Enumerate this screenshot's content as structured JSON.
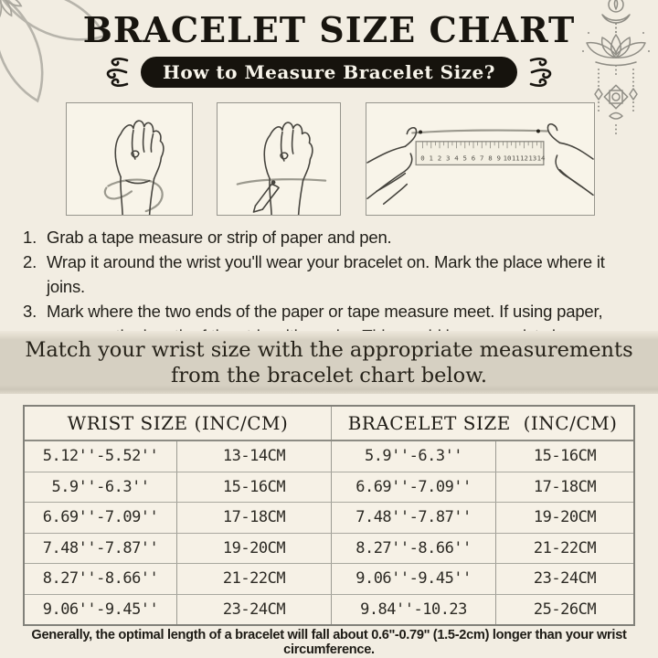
{
  "page_title": "BRACELET SIZE CHART",
  "badge_label": "How to Measure Bracelet Size?",
  "steps": [
    {
      "num": "1.",
      "text": "Grab a tape measure or strip of paper and pen."
    },
    {
      "num": "2.",
      "text": "Wrap it around the wrist you'll wear your bracelet on. Mark the place where it joins."
    },
    {
      "num": "3.",
      "text": "Mark where the two ends of the paper or tape measure meet. If using paper, measure the length of the strip with a ruler. This would be your wrist size."
    }
  ],
  "banner": {
    "line1": "Match your wrist size with the appropriate measurements",
    "line2": "from the bracelet chart below."
  },
  "illustrations": {
    "box1": "fist with tape measure wrapped around wrist",
    "box2": "fist with pen marking the wrist tape",
    "box3": "hands measuring paper strip against a ruler",
    "ruler_numbers": [
      "0",
      "1",
      "2",
      "3",
      "4",
      "5",
      "6",
      "7",
      "8",
      "9",
      "10",
      "11",
      "12",
      "13",
      "14"
    ]
  },
  "table": {
    "headers": [
      "WRIST SIZE (INC/CM)",
      "BRACELET SIZE  (INC/CM)"
    ],
    "rows": [
      [
        "5.12''-5.52''",
        "13-14CM",
        "5.9''-6.3''",
        "15-16CM"
      ],
      [
        "5.9''-6.3''",
        "15-16CM",
        "6.69''-7.09''",
        "17-18CM"
      ],
      [
        "6.69''-7.09''",
        "17-18CM",
        "7.48''-7.87''",
        "19-20CM"
      ],
      [
        "7.48''-7.87''",
        "19-20CM",
        "8.27''-8.66''",
        "21-22CM"
      ],
      [
        "8.27''-8.66''",
        "21-22CM",
        "9.06''-9.45''",
        "23-24CM"
      ],
      [
        "9.06''-9.45''",
        "23-24CM",
        "9.84''-10.23",
        "25-26CM"
      ]
    ]
  },
  "footer": "Generally, the optimal length of a bracelet will fall about 0.6''-0.79'' (1.5-2cm) longer than your wrist circumference.",
  "colors": {
    "background": "#f2ede2",
    "banner_band": "#d6d0c2",
    "badge_pill": "#16130d",
    "ink_text": "#211f19",
    "table_border": "#82817a",
    "ornament_gray": "#8f8d85"
  }
}
